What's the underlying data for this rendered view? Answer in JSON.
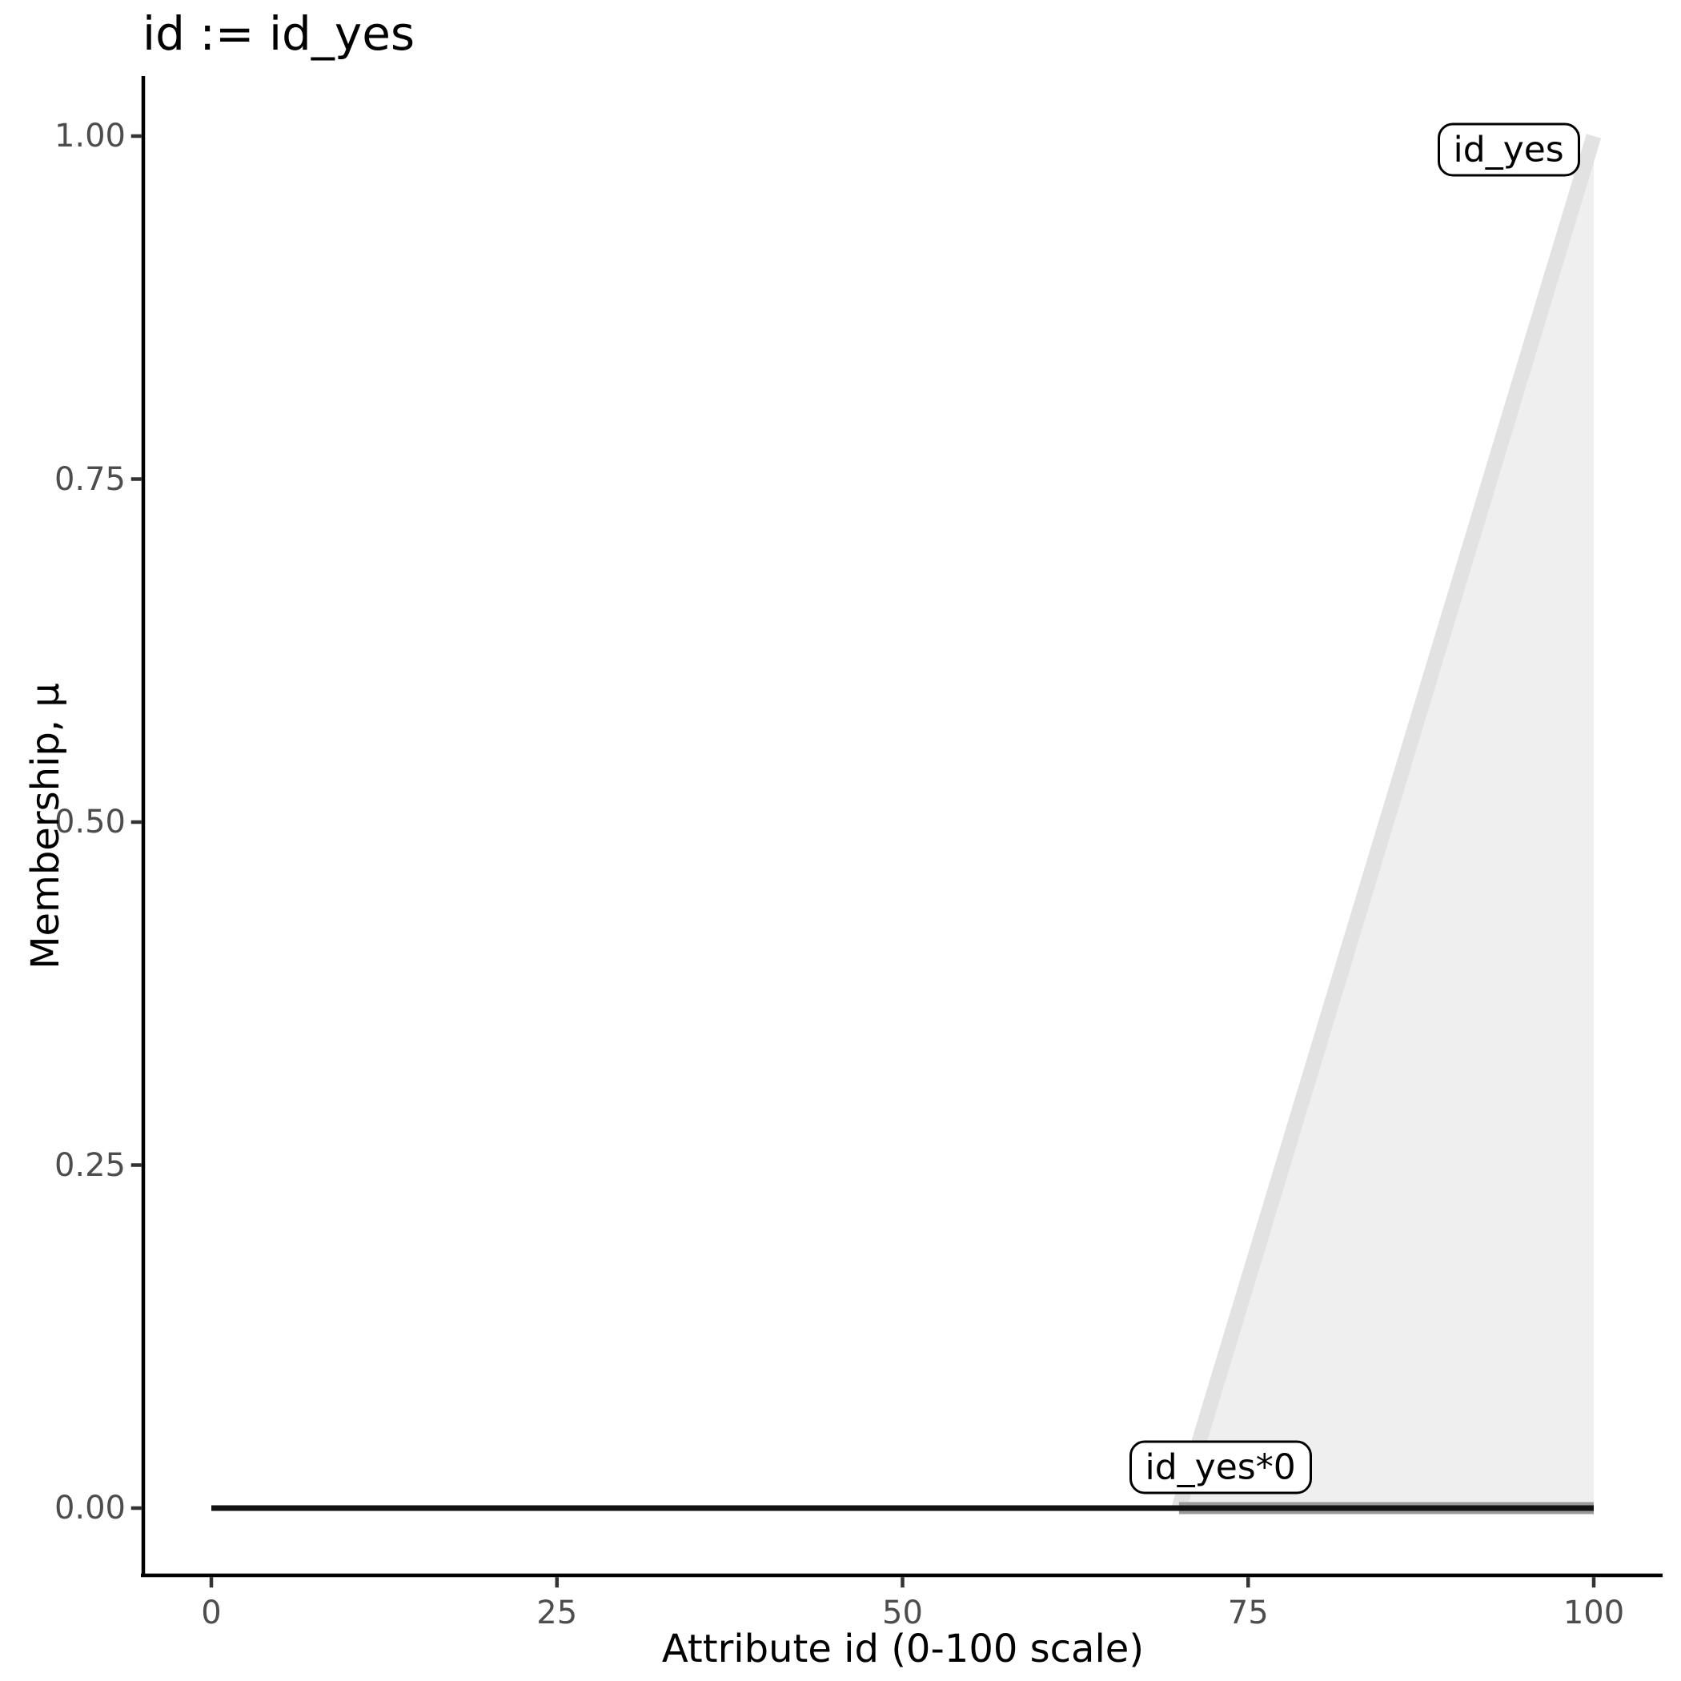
{
  "chart_data": {
    "type": "line",
    "title": "id := id_yes",
    "xlabel": "Attribute id (0-100 scale)",
    "ylabel": "Membership, μ",
    "xlim": [
      0,
      100
    ],
    "ylim": [
      0,
      1
    ],
    "x_ticks": [
      0,
      25,
      50,
      75,
      100
    ],
    "y_ticks": [
      {
        "value": 0.0,
        "label": "0.00"
      },
      {
        "value": 0.25,
        "label": "0.25"
      },
      {
        "value": 0.5,
        "label": "0.50"
      },
      {
        "value": 0.75,
        "label": "0.75"
      },
      {
        "value": 1.0,
        "label": "1.00"
      }
    ],
    "grid": false,
    "legend": false,
    "series": [
      {
        "name": "id_yes",
        "role": "membership-function",
        "points": [
          [
            70,
            0
          ],
          [
            100,
            1
          ]
        ],
        "line_color": "#e2e2e2",
        "line_width": 19,
        "area_fill": "#efefef",
        "area_points": [
          [
            70,
            0
          ],
          [
            100,
            1
          ],
          [
            100,
            0
          ]
        ]
      },
      {
        "name": "id_yes support band",
        "role": "support-band",
        "points": [
          [
            70,
            0
          ],
          [
            100,
            0
          ]
        ],
        "line_color": "#9a9a9a",
        "line_width": 15,
        "area_fill": null,
        "area_points": null
      },
      {
        "name": "id_yes*0",
        "role": "scaled-membership-function",
        "points": [
          [
            0,
            0
          ],
          [
            100,
            0
          ]
        ],
        "line_color": "#111111",
        "line_width": 7,
        "area_fill": null,
        "area_points": null
      }
    ],
    "annotations": [
      {
        "text": "id_yes",
        "x": 99.0,
        "y": 0.99,
        "h_align": "right"
      },
      {
        "text": "id_yes*0",
        "x": 79.6,
        "y": 0.03,
        "h_align": "right"
      }
    ]
  },
  "palette": {
    "background": "#ffffff",
    "axis_line": "#000000",
    "tick_mark": "#333333",
    "tick_label": "#4d4d4d",
    "text": "#000000",
    "label_box_fill": "#ffffff",
    "label_box_border": "#000000"
  }
}
